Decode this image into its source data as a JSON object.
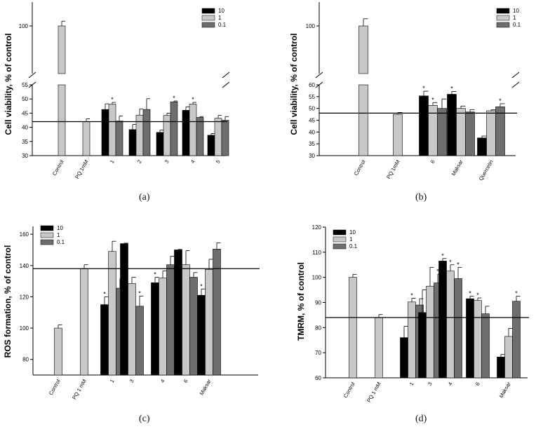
{
  "figure": {
    "panel_labels": [
      "(a)",
      "(b)",
      "(c)",
      "(d)"
    ]
  },
  "colors": {
    "black": "#000000",
    "light": "#c8c8c8",
    "dark": "#6e6e6e"
  },
  "chart_data": [
    {
      "id": "a",
      "type": "bar",
      "ylabel": "Cell viability, % of control",
      "axis_break": true,
      "lower_range": [
        30,
        55
      ],
      "lower_ticks": [
        30,
        35,
        40,
        45,
        50,
        55
      ],
      "upper_ticks": [
        100
      ],
      "reference_line": 42,
      "legend": [
        "10",
        "1",
        "0.1"
      ],
      "groups": [
        {
          "label": "Control",
          "bars": [
            {
              "series": 1,
              "value": 100,
              "error": 2,
              "star": false
            }
          ]
        },
        {
          "label": "PQ 1mM",
          "bars": [
            {
              "series": 1,
              "value": 42,
              "error": 1,
              "star": false
            }
          ]
        },
        {
          "label": "1",
          "bars": [
            {
              "series": 0,
              "value": 46.3,
              "error": 2,
              "star": false
            },
            {
              "series": 1,
              "value": 48.2,
              "error": 0.6,
              "star": true
            },
            {
              "series": 2,
              "value": 42.2,
              "error": 1.8,
              "star": false
            }
          ]
        },
        {
          "label": "2",
          "bars": [
            {
              "series": 0,
              "value": 39.2,
              "error": 1.8,
              "star": false
            },
            {
              "series": 1,
              "value": 44.3,
              "error": 2.2,
              "star": false
            },
            {
              "series": 2,
              "value": 46.3,
              "error": 3.8,
              "star": false
            }
          ]
        },
        {
          "label": "3",
          "bars": [
            {
              "series": 0,
              "value": 38.2,
              "error": 0.8,
              "star": false
            },
            {
              "series": 1,
              "value": 44.2,
              "error": 0.8,
              "star": false
            },
            {
              "series": 2,
              "value": 49,
              "error": 0.3,
              "star": true
            }
          ]
        },
        {
          "label": "4",
          "bars": [
            {
              "series": 0,
              "value": 46,
              "error": 1.2,
              "star": false
            },
            {
              "series": 1,
              "value": 48.2,
              "error": 0.6,
              "star": true
            },
            {
              "series": 2,
              "value": 43.5,
              "error": 0.3,
              "star": false
            }
          ]
        },
        {
          "label": "5",
          "bars": [
            {
              "series": 0,
              "value": 37.2,
              "error": 0.6,
              "star": false
            },
            {
              "series": 1,
              "value": 43.2,
              "error": 1,
              "star": false
            },
            {
              "series": 2,
              "value": 42.5,
              "error": 1.3,
              "star": false
            }
          ]
        }
      ]
    },
    {
      "id": "b",
      "type": "bar",
      "ylabel": "Cell viability, % of control",
      "axis_break": true,
      "lower_range": [
        30,
        60
      ],
      "lower_ticks": [
        30,
        35,
        40,
        45,
        50,
        55,
        60
      ],
      "upper_ticks": [
        100
      ],
      "reference_line": 48,
      "legend": [
        "10",
        "1",
        "0.1"
      ],
      "groups": [
        {
          "label": "Control",
          "bars": [
            {
              "series": 1,
              "value": 100,
              "error": 3,
              "star": false
            }
          ]
        },
        {
          "label": "PQ 1mM",
          "bars": [
            {
              "series": 1,
              "value": 47.5,
              "error": 0.8,
              "star": false
            }
          ]
        },
        {
          "label": "6",
          "bars": [
            {
              "series": 0,
              "value": 55.3,
              "error": 2,
              "star": true
            },
            {
              "series": 1,
              "value": 51.3,
              "error": 1.2,
              "star": true
            },
            {
              "series": 2,
              "value": 50,
              "error": 4,
              "star": false
            }
          ]
        },
        {
          "label": "Maksar",
          "bars": [
            {
              "series": 0,
              "value": 56,
              "error": 1.2,
              "star": true
            },
            {
              "series": 1,
              "value": 50,
              "error": 1,
              "star": false
            },
            {
              "series": 2,
              "value": 48.5,
              "error": 1,
              "star": false
            }
          ]
        },
        {
          "label": "Quercetin",
          "bars": [
            {
              "series": 0,
              "value": 37.5,
              "error": 0.8,
              "star": false
            },
            {
              "series": 1,
              "value": 49,
              "error": 0.4,
              "star": false
            },
            {
              "series": 2,
              "value": 50.7,
              "error": 1.3,
              "star": true
            }
          ]
        }
      ]
    },
    {
      "id": "c",
      "type": "bar",
      "ylabel": "ROS formation, % of control",
      "axis_break": false,
      "range": [
        70,
        165
      ],
      "ticks": [
        80,
        100,
        120,
        140,
        160
      ],
      "reference_line": 138,
      "legend": [
        "10",
        "1",
        "0.1"
      ],
      "groups": [
        {
          "label": "Control",
          "bars": [
            {
              "series": 1,
              "value": 100,
              "error": 2,
              "star": false
            }
          ]
        },
        {
          "label": "PQ 1 mM",
          "bars": [
            {
              "series": 1,
              "value": 138,
              "error": 2.5,
              "star": false
            }
          ]
        },
        {
          "label": "1",
          "bars": [
            {
              "series": 0,
              "value": 115,
              "error": 5,
              "star": true
            },
            {
              "series": 1,
              "value": 149,
              "error": 6.5,
              "star": false
            },
            {
              "series": 2,
              "value": 125.5,
              "error": 6,
              "star": false
            }
          ]
        },
        {
          "label": "3",
          "bars": [
            {
              "series": 0,
              "value": 154,
              "error": 0.3,
              "star": false
            },
            {
              "series": 1,
              "value": 128.5,
              "error": 4,
              "star": false
            },
            {
              "series": 2,
              "value": 114,
              "error": 6.5,
              "star": true
            }
          ]
        },
        {
          "label": "4",
          "bars": [
            {
              "series": 0,
              "value": 129,
              "error": 3.5,
              "star": true
            },
            {
              "series": 1,
              "value": 132,
              "error": 4.5,
              "star": false
            },
            {
              "series": 2,
              "value": 140.5,
              "error": 5.5,
              "star": false
            }
          ]
        },
        {
          "label": "6",
          "bars": [
            {
              "series": 0,
              "value": 150,
              "error": 0.3,
              "star": false
            },
            {
              "series": 1,
              "value": 140.5,
              "error": 9,
              "star": false
            },
            {
              "series": 2,
              "value": 132.5,
              "error": 3,
              "star": false
            }
          ]
        },
        {
          "label": "Maksar",
          "bars": [
            {
              "series": 0,
              "value": 121,
              "error": 4,
              "star": true
            },
            {
              "series": 1,
              "value": 137.5,
              "error": 6.5,
              "star": false
            },
            {
              "series": 2,
              "value": 150.5,
              "error": 4,
              "star": false
            }
          ]
        }
      ]
    },
    {
      "id": "d",
      "type": "bar",
      "ylabel": "TMRM, % of control",
      "axis_break": false,
      "range": [
        60,
        120
      ],
      "ticks": [
        60,
        70,
        80,
        90,
        100,
        110,
        120
      ],
      "reference_line": 84,
      "legend": [
        "10",
        "1",
        "0.1"
      ],
      "groups": [
        {
          "label": "Control",
          "bars": [
            {
              "series": 1,
              "value": 100,
              "error": 1.2,
              "star": false
            }
          ]
        },
        {
          "label": "PQ 1 mM",
          "bars": [
            {
              "series": 1,
              "value": 84,
              "error": 1.2,
              "star": false
            }
          ]
        },
        {
          "label": "1",
          "bars": [
            {
              "series": 0,
              "value": 76,
              "error": 4.5,
              "star": false
            },
            {
              "series": 1,
              "value": 90.2,
              "error": 1.5,
              "star": true
            },
            {
              "series": 2,
              "value": 89,
              "error": 2.5,
              "star": false
            }
          ]
        },
        {
          "label": "3",
          "bars": [
            {
              "series": 0,
              "value": 86,
              "error": 9,
              "star": false
            },
            {
              "series": 1,
              "value": 96.5,
              "error": 7.5,
              "star": false
            },
            {
              "series": 2,
              "value": 97.8,
              "error": 3.5,
              "star": true
            }
          ]
        },
        {
          "label": "4",
          "bars": [
            {
              "series": 0,
              "value": 106.5,
              "error": 1,
              "star": true
            },
            {
              "series": 1,
              "value": 102.5,
              "error": 2.5,
              "star": true
            },
            {
              "series": 2,
              "value": 99.5,
              "error": 4.5,
              "star": true
            }
          ]
        },
        {
          "label": "6",
          "bars": [
            {
              "series": 0,
              "value": 91.5,
              "error": 1,
              "star": true
            },
            {
              "series": 1,
              "value": 90.8,
              "error": 1,
              "star": true
            },
            {
              "series": 2,
              "value": 85.5,
              "error": 3,
              "star": false
            }
          ]
        },
        {
          "label": "Maksar",
          "bars": [
            {
              "series": 0,
              "value": 68.3,
              "error": 1,
              "star": false
            },
            {
              "series": 1,
              "value": 76.5,
              "error": 3.2,
              "star": false
            },
            {
              "series": 2,
              "value": 90.5,
              "error": 2,
              "star": true
            }
          ]
        }
      ]
    }
  ]
}
